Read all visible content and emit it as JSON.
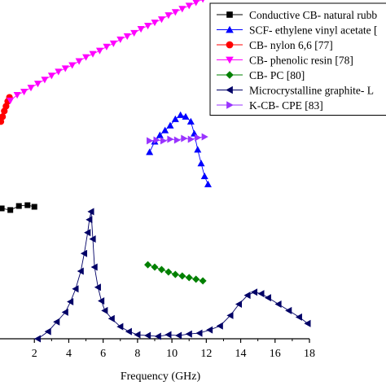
{
  "chart_data": {
    "type": "line",
    "title": "",
    "xlabel": "Frequency (GHz)",
    "ylabel": "",
    "xlim": [
      0,
      18
    ],
    "ylim": [
      0,
      42
    ],
    "x_ticks": [
      2,
      4,
      6,
      8,
      10,
      12,
      14,
      16,
      18
    ],
    "grid": false,
    "legend_position": "top-right",
    "series": [
      {
        "name": "Conductive CB- natural rubb",
        "color": "#000000",
        "marker": "square",
        "points": [
          [
            0.1,
            16.2
          ],
          [
            0.6,
            16.0
          ],
          [
            1.1,
            16.5
          ],
          [
            1.6,
            16.6
          ],
          [
            2.0,
            16.4
          ]
        ]
      },
      {
        "name": "SCF- ethylene vinyl acetate [",
        "color": "#0000ff",
        "marker": "triangle-up",
        "points": [
          [
            8.7,
            23.2
          ],
          [
            9.0,
            24.5
          ],
          [
            9.3,
            25.3
          ],
          [
            9.6,
            25.9
          ],
          [
            9.9,
            26.5
          ],
          [
            10.2,
            27.3
          ],
          [
            10.5,
            27.8
          ],
          [
            10.8,
            27.6
          ],
          [
            11.1,
            27.0
          ],
          [
            11.3,
            25.5
          ],
          [
            11.5,
            23.5
          ],
          [
            11.7,
            21.8
          ],
          [
            11.9,
            20.2
          ],
          [
            12.1,
            19.2
          ]
        ]
      },
      {
        "name": "CB- nylon 6,6 [77]",
        "color": "#ff0000",
        "marker": "circle",
        "points": [
          [
            0.05,
            27.0
          ],
          [
            0.15,
            27.6
          ],
          [
            0.25,
            28.3
          ],
          [
            0.35,
            28.9
          ],
          [
            0.45,
            29.5
          ],
          [
            0.55,
            30.0
          ]
        ]
      },
      {
        "name": "CB- phenolic resin [78]",
        "color": "#ff00ff",
        "marker": "triangle-down",
        "points": [
          [
            0.6,
            29.6
          ],
          [
            1.0,
            30.3
          ],
          [
            1.4,
            30.7
          ],
          [
            1.8,
            31.2
          ],
          [
            2.2,
            31.7
          ],
          [
            2.6,
            32.2
          ],
          [
            3.0,
            32.7
          ],
          [
            3.4,
            33.2
          ],
          [
            3.8,
            33.6
          ],
          [
            4.2,
            34.0
          ],
          [
            4.6,
            34.5
          ],
          [
            5.0,
            35.0
          ],
          [
            5.4,
            35.4
          ],
          [
            5.8,
            35.8
          ],
          [
            6.2,
            36.3
          ],
          [
            6.6,
            36.7
          ],
          [
            7.0,
            37.2
          ],
          [
            7.4,
            37.6
          ],
          [
            7.8,
            38.0
          ],
          [
            8.2,
            38.5
          ],
          [
            8.6,
            38.9
          ],
          [
            9.0,
            39.3
          ],
          [
            9.4,
            39.7
          ],
          [
            9.8,
            40.2
          ],
          [
            10.2,
            40.6
          ],
          [
            10.6,
            41.0
          ],
          [
            11.0,
            41.4
          ],
          [
            11.4,
            41.8
          ],
          [
            11.8,
            42.2
          ]
        ]
      },
      {
        "name": "CB- PC [80]",
        "color": "#008000",
        "marker": "diamond",
        "points": [
          [
            8.6,
            9.2
          ],
          [
            9.0,
            8.9
          ],
          [
            9.4,
            8.6
          ],
          [
            9.8,
            8.3
          ],
          [
            10.2,
            8.0
          ],
          [
            10.6,
            7.8
          ],
          [
            11.0,
            7.6
          ],
          [
            11.4,
            7.4
          ],
          [
            11.8,
            7.2
          ]
        ]
      },
      {
        "name": "Microcrystalline graphite- L",
        "color": "#000066",
        "marker": "triangle-left",
        "points": [
          [
            2.2,
            0.0
          ],
          [
            2.8,
            0.9
          ],
          [
            3.3,
            2.1
          ],
          [
            3.8,
            3.3
          ],
          [
            4.1,
            4.6
          ],
          [
            4.4,
            6.2
          ],
          [
            4.7,
            8.4
          ],
          [
            4.9,
            10.6
          ],
          [
            5.1,
            13.2
          ],
          [
            5.2,
            14.8
          ],
          [
            5.3,
            15.8
          ],
          [
            5.4,
            12.4
          ],
          [
            5.5,
            8.9
          ],
          [
            5.7,
            6.4
          ],
          [
            5.9,
            4.7
          ],
          [
            6.1,
            3.5
          ],
          [
            6.5,
            2.5
          ],
          [
            7.0,
            1.5
          ],
          [
            7.5,
            0.9
          ],
          [
            8.0,
            0.5
          ],
          [
            8.6,
            0.4
          ],
          [
            9.2,
            0.3
          ],
          [
            9.8,
            0.5
          ],
          [
            10.4,
            0.4
          ],
          [
            11.0,
            0.6
          ],
          [
            11.6,
            0.7
          ],
          [
            12.2,
            1.1
          ],
          [
            12.8,
            1.6
          ],
          [
            13.4,
            2.9
          ],
          [
            13.9,
            4.3
          ],
          [
            14.4,
            5.4
          ],
          [
            14.8,
            5.8
          ],
          [
            15.2,
            5.6
          ],
          [
            15.6,
            5.1
          ],
          [
            16.2,
            4.3
          ],
          [
            16.8,
            3.5
          ],
          [
            17.4,
            2.7
          ],
          [
            17.9,
            1.9
          ]
        ]
      },
      {
        "name": "K-CB- CPE [83]",
        "color": "#9933ff",
        "marker": "triangle-right",
        "points": [
          [
            8.7,
            24.6
          ],
          [
            9.1,
            24.7
          ],
          [
            9.5,
            24.6
          ],
          [
            9.9,
            24.8
          ],
          [
            10.3,
            24.7
          ],
          [
            10.7,
            24.9
          ],
          [
            11.1,
            24.8
          ],
          [
            11.5,
            25.0
          ],
          [
            11.9,
            25.1
          ]
        ]
      }
    ]
  }
}
